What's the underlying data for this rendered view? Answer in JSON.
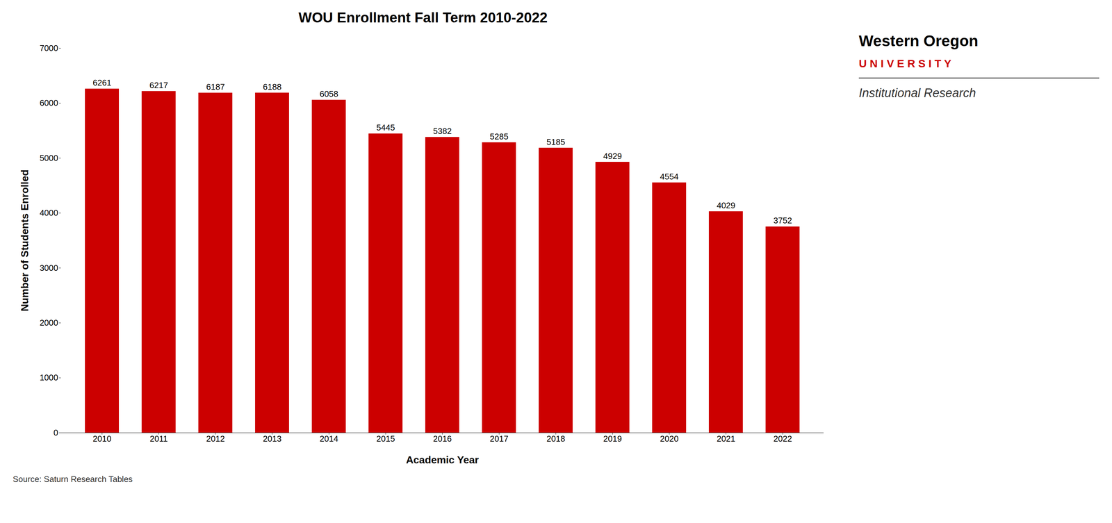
{
  "chart_data": {
    "type": "bar",
    "title": "WOU Enrollment Fall Term 2010-2022",
    "xlabel": "Academic Year",
    "ylabel": "Number of Students Enrolled",
    "categories": [
      "2010",
      "2011",
      "2012",
      "2013",
      "2014",
      "2015",
      "2016",
      "2017",
      "2018",
      "2019",
      "2020",
      "2021",
      "2022"
    ],
    "values": [
      6261,
      6217,
      6187,
      6188,
      6058,
      5445,
      5382,
      5285,
      5185,
      4929,
      4554,
      4029,
      3752
    ],
    "color": "#CC0000",
    "ylim": [
      0,
      7000
    ],
    "yticks": [
      0,
      1000,
      2000,
      3000,
      4000,
      5000,
      6000,
      7000
    ],
    "grid": false,
    "data_labels": true,
    "source": "Source: Saturn Research Tables",
    "annotations": [
      {
        "text": "Western Oregon",
        "color": "#000000"
      },
      {
        "text": "U N I V E R S I T Y",
        "color": "#CC0000"
      },
      {
        "text": "Institutional Research",
        "color": "#333333"
      }
    ]
  }
}
